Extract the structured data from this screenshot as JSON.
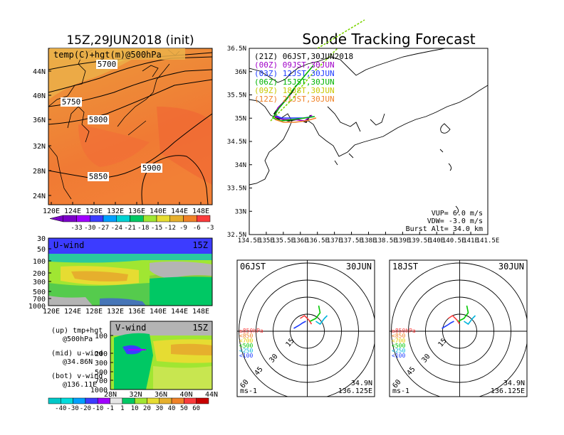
{
  "map_title": "15Z,29JUN2018 (init)",
  "track_title": "Sonde Tracking Forecast",
  "temp_panel": {
    "label": "temp(C)+hgt(m)@500hPa",
    "contours": [
      "5700",
      "5750",
      "5800",
      "5850",
      "5900"
    ],
    "lat_ticks": [
      "44N",
      "40N",
      "36N",
      "32N",
      "28N",
      "24N"
    ],
    "lon_ticks": [
      "120E",
      "124E",
      "128E",
      "132E",
      "136E",
      "140E",
      "144E",
      "148E"
    ],
    "colorbar": [
      "-33",
      "-30",
      "-27",
      "-24",
      "-21",
      "-18",
      "-15",
      "-12",
      "-9",
      "-6",
      "-3"
    ],
    "colors": [
      "#7b00c8",
      "#a000ff",
      "#3c3cff",
      "#00a0ff",
      "#00d2d2",
      "#00c864",
      "#a0e632",
      "#e6dc32",
      "#e6af2d",
      "#f08228",
      "#fa3c3c"
    ]
  },
  "uwind_panel": {
    "label": "U-wind",
    "time": "15Z",
    "y_ticks": [
      "30",
      "50",
      "100",
      "200",
      "300",
      "500",
      "700",
      "1000"
    ],
    "x_ticks": [
      "120E",
      "124E",
      "128E",
      "132E",
      "136E",
      "140E",
      "144E",
      "148E"
    ]
  },
  "vwind_panel": {
    "label": "V-wind",
    "time": "15Z",
    "y_ticks": [
      "100",
      "200",
      "300",
      "500",
      "700",
      "1000"
    ],
    "x_ticks": [
      "28N",
      "32N",
      "36N",
      "40N",
      "44N"
    ]
  },
  "notes": [
    {
      "line1": "(up) tmp+hgt",
      "line2": "@500hPa"
    },
    {
      "line1": "(mid) u-wind",
      "line2": "@34.86N"
    },
    {
      "line1": "(bot) v-wind",
      "line2": "@136.11E"
    }
  ],
  "wind_colorbar": {
    "labels": [
      "-40",
      "-30",
      "-20",
      "-10",
      "-1",
      "1",
      "10",
      "20",
      "30",
      "40",
      "50",
      "60"
    ],
    "colors": [
      "#00c8c8",
      "#00dcdc",
      "#00a0ff",
      "#3c3cff",
      "#a000ff",
      "#e6e6e6",
      "#00c864",
      "#a0e632",
      "#e6dc32",
      "#e6af2d",
      "#f08228",
      "#fa3c3c",
      "#c80000"
    ]
  },
  "track_map": {
    "lat_ticks": [
      "36.5N",
      "36N",
      "35.5N",
      "35N",
      "34.5N",
      "34N",
      "33.5N",
      "33N",
      "32.5N"
    ],
    "lon_ticks": [
      "134.5E",
      "135E",
      "135.5E",
      "136E",
      "136.5E",
      "137E",
      "137.5E",
      "138E",
      "138.5E",
      "139E",
      "139.5E",
      "140E",
      "140.5E",
      "141E",
      "141.5E"
    ],
    "legend": [
      {
        "text": "(21Z) 06JST,30JUN2018",
        "color": "#000000"
      },
      {
        "text": "(00Z) 09JST,30JUN",
        "color": "#a000c8"
      },
      {
        "text": "(03Z) 12JST,30JUN",
        "color": "#1e3cff"
      },
      {
        "text": "(06Z) 15JST,30JUN",
        "color": "#00b400"
      },
      {
        "text": "(09Z) 18JST,30JUN",
        "color": "#c8c800"
      },
      {
        "text": "(12Z) 21JST,30JUN",
        "color": "#f08228"
      }
    ],
    "params": [
      "VUP=  6.0 m/s",
      "VDW= -3.0 m/s",
      "Burst Alt= 34.0 km"
    ]
  },
  "hodographs": [
    {
      "time": "06JST",
      "date": "30JUN",
      "rings": [
        "15",
        "30",
        "45",
        "60"
      ],
      "unit": "ms-1",
      "lat": "34.9N",
      "lon": "136.125E",
      "levels": [
        {
          "t": "≥850hPa",
          "c": "#fa3c3c"
        },
        {
          "t": "<850",
          "c": "#f08228"
        },
        {
          "t": "<700",
          "c": "#e6c800"
        },
        {
          "t": "<500",
          "c": "#00c800"
        },
        {
          "t": "<250",
          "c": "#00b4dc"
        },
        {
          "t": "<100",
          "c": "#1e3cff"
        }
      ]
    },
    {
      "time": "18JST",
      "date": "30JUN",
      "rings": [
        "15",
        "30",
        "45",
        "60"
      ],
      "unit": "ms-1",
      "lat": "34.9N",
      "lon": "136.125E",
      "levels": [
        {
          "t": "≥850hPa",
          "c": "#fa3c3c"
        },
        {
          "t": "<850",
          "c": "#f08228"
        },
        {
          "t": "<700",
          "c": "#e6c800"
        },
        {
          "t": "<500",
          "c": "#00c800"
        },
        {
          "t": "<250",
          "c": "#00b4dc"
        },
        {
          "t": "<100",
          "c": "#1e3cff"
        }
      ]
    }
  ]
}
